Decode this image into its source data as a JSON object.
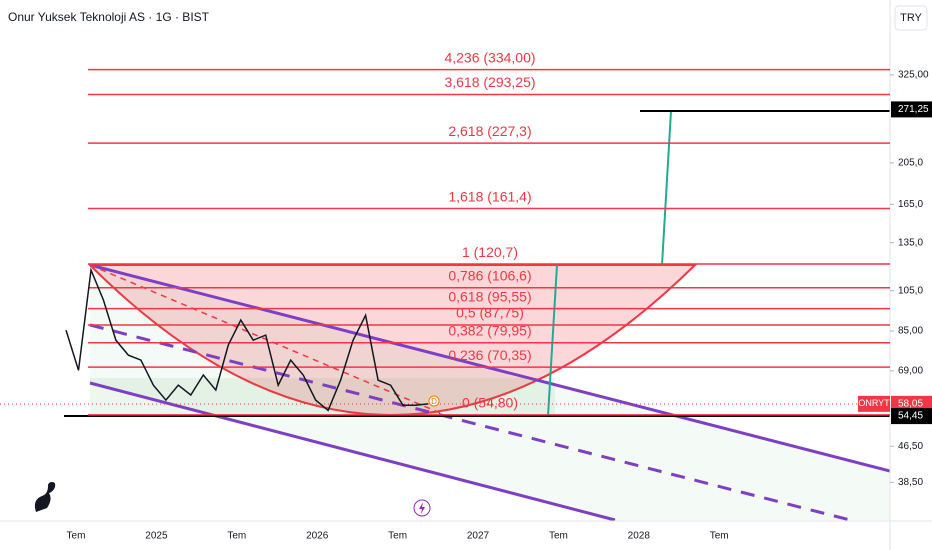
{
  "chart_data": {
    "type": "line",
    "title": "Onur Yuksek Teknoloji AS · 1G · BIST",
    "currency": "TRY",
    "log_scale": true,
    "grid": false,
    "color": "#131722",
    "ylim": [
      31.6,
      481
    ],
    "yticks": [
      {
        "value": 325,
        "label": "325,00"
      },
      {
        "value": 205,
        "label": "205,0"
      },
      {
        "value": 165,
        "label": "165,0"
      },
      {
        "value": 135,
        "label": "135,0"
      },
      {
        "value": 105,
        "label": "105,0"
      },
      {
        "value": 85,
        "label": "85,00"
      },
      {
        "value": 69,
        "label": "69,00"
      },
      {
        "value": 46.5,
        "label": "46,50"
      },
      {
        "value": 38.5,
        "label": "38,50"
      }
    ],
    "xticks": [
      "Tem",
      "2025",
      "Tem",
      "2026",
      "Tem",
      "2027",
      "Tem",
      "2028",
      "Tem"
    ],
    "values": [
      85.4,
      69.2,
      117,
      100,
      81,
      74.9,
      73,
      64,
      59.2,
      64,
      60.8,
      67.5,
      62.4,
      79,
      90,
      81,
      83.2,
      64,
      73,
      67.5,
      59.2,
      56.1,
      65.7,
      81,
      92.3,
      65.7,
      64,
      57.6,
      57.6,
      58.05
    ],
    "fib_color": "#f23645",
    "fib_levels": [
      {
        "label": "4,236 (334,00)",
        "value": 334
      },
      {
        "label": "3,618 (293,25)",
        "value": 293.25
      },
      {
        "label": "2,618 (227,3)",
        "value": 227.3
      },
      {
        "label": "1,618 (161,4)",
        "value": 161.4
      },
      {
        "label": "1 (120,7)",
        "value": 120.7
      },
      {
        "label": "0,786 (106,6)",
        "value": 106.6
      },
      {
        "label": "0,618 (95,55)",
        "value": 95.55
      },
      {
        "label": "0,5 (87,75)",
        "value": 87.75
      },
      {
        "label": "0,382 (79,95)",
        "value": 79.95
      },
      {
        "label": "0,236 (70,35)",
        "value": 70.35
      },
      {
        "label": "0 (54,80)",
        "value": 54.8
      }
    ],
    "price_tags": [
      {
        "name": "ONRYT",
        "value": 58.05,
        "label": "58,05",
        "color": "#f23645"
      },
      {
        "value": 54.45,
        "label": "54,45",
        "color": "#000000"
      },
      {
        "value": 271.25,
        "label": "271,25",
        "color": "#000000"
      }
    ]
  }
}
